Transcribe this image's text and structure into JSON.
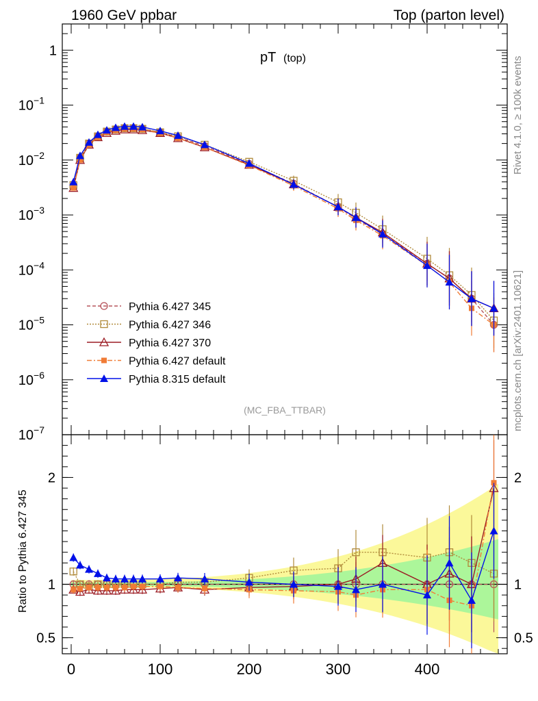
{
  "header": {
    "left": "1960 GeV ppbar",
    "right": "Top (parton level)"
  },
  "side_text": {
    "rivet": "Rivet 4.1.0, ≥ 100k events",
    "mcplots": "mcplots.cern.ch [arXiv:2401.10621]"
  },
  "chart_data": {
    "type": "line",
    "title": "pT",
    "title_sub": "(top)",
    "analysis_label": "(MC_FBA_TTBAR)",
    "xlabel": "",
    "xlim": [
      -10,
      490
    ],
    "xticks": [
      "0",
      "100",
      "200",
      "300",
      "400"
    ],
    "main": {
      "ylabel": "",
      "yscale": "log",
      "ylim": [
        1e-07,
        3
      ],
      "yticks": [
        "1",
        "10^-1",
        "10^-2",
        "10^-3",
        "10^-4",
        "10^-5",
        "10^-6",
        "10^-7"
      ]
    },
    "ratio": {
      "ylabel": "Ratio to Pythia 6.427 345",
      "ylim": [
        0.35,
        2.4
      ],
      "yticks": [
        "0.5",
        "1",
        "2"
      ],
      "reference": "Pythia 6.427 345"
    },
    "legend": [
      {
        "label": "Pythia 6.427 345",
        "color": "#b5525a",
        "marker": "open-circle",
        "dash": "5,3"
      },
      {
        "label": "Pythia 6.427 346",
        "color": "#b08a3a",
        "marker": "open-square",
        "dash": "2,2"
      },
      {
        "label": "Pythia 6.427 370",
        "color": "#9b1c24",
        "marker": "open-triangle",
        "dash": ""
      },
      {
        "label": "Pythia 6.427 default",
        "color": "#f07c36",
        "marker": "filled-square",
        "dash": "7,3,2,3"
      },
      {
        "label": "Pythia 8.315 default",
        "color": "#0010e8",
        "marker": "filled-triangle",
        "dash": ""
      }
    ],
    "series": [
      {
        "name": "Pythia 6.427 345",
        "x": [
          2.5,
          10,
          20,
          30,
          40,
          50,
          60,
          70,
          80,
          100,
          120,
          150,
          200,
          250,
          300,
          320,
          350,
          400,
          425,
          450,
          475
        ],
        "y": [
          0.0033,
          0.011,
          0.02,
          0.027,
          0.033,
          0.036,
          0.038,
          0.038,
          0.037,
          0.032,
          0.026,
          0.018,
          0.0085,
          0.0037,
          0.0014,
          0.00085,
          0.00045,
          0.00013,
          7e-05,
          3e-05,
          1e-05
        ],
        "ratio": [
          1.0,
          1.0,
          1.0,
          1.0,
          1.0,
          1.0,
          1.0,
          1.0,
          1.0,
          1.0,
          1.0,
          1.0,
          1.0,
          1.0,
          1.0,
          1.0,
          1.0,
          1.0,
          1.0,
          1.0,
          1.0
        ]
      },
      {
        "name": "Pythia 6.427 346",
        "x": [
          2.5,
          10,
          20,
          30,
          40,
          50,
          60,
          70,
          80,
          100,
          120,
          150,
          200,
          250,
          300,
          320,
          350,
          400,
          425,
          450,
          475
        ],
        "y": [
          0.0035,
          0.011,
          0.02,
          0.027,
          0.033,
          0.036,
          0.038,
          0.038,
          0.037,
          0.032,
          0.027,
          0.019,
          0.0093,
          0.0042,
          0.0017,
          0.0011,
          0.00055,
          0.00016,
          8e-05,
          3.5e-05,
          1.2e-05
        ],
        "ratio": [
          1.12,
          1.0,
          0.98,
          1.0,
          1.0,
          1.0,
          1.0,
          1.0,
          1.0,
          1.0,
          1.02,
          1.02,
          1.06,
          1.13,
          1.15,
          1.3,
          1.3,
          1.25,
          1.3,
          1.2,
          1.1
        ]
      },
      {
        "name": "Pythia 6.427 370",
        "x": [
          2.5,
          10,
          20,
          30,
          40,
          50,
          60,
          70,
          80,
          100,
          120,
          150,
          200,
          250,
          300,
          320,
          350,
          400,
          425,
          450,
          475
        ],
        "y": [
          0.0031,
          0.01,
          0.019,
          0.026,
          0.031,
          0.034,
          0.036,
          0.036,
          0.035,
          0.031,
          0.025,
          0.017,
          0.0082,
          0.0036,
          0.0014,
          0.0009,
          0.00048,
          0.00013,
          7e-05,
          3e-05,
          2e-05
        ],
        "ratio": [
          0.95,
          0.93,
          0.95,
          0.94,
          0.94,
          0.94,
          0.95,
          0.95,
          0.95,
          0.96,
          0.97,
          0.95,
          0.97,
          0.98,
          1.0,
          1.05,
          1.2,
          1.0,
          1.1,
          1.0,
          1.9
        ]
      },
      {
        "name": "Pythia 6.427 default",
        "x": [
          2.5,
          10,
          20,
          30,
          40,
          50,
          60,
          70,
          80,
          100,
          120,
          150,
          200,
          250,
          300,
          320,
          350,
          400,
          425,
          450,
          475
        ],
        "y": [
          0.0031,
          0.01,
          0.019,
          0.026,
          0.032,
          0.035,
          0.037,
          0.037,
          0.036,
          0.031,
          0.025,
          0.017,
          0.008,
          0.0034,
          0.0013,
          0.0008,
          0.00042,
          0.00012,
          6e-05,
          2e-05,
          1e-05
        ],
        "ratio": [
          0.95,
          0.96,
          0.97,
          0.97,
          0.97,
          0.97,
          0.97,
          0.98,
          0.98,
          0.98,
          0.97,
          0.96,
          0.95,
          0.94,
          0.93,
          0.9,
          0.95,
          0.95,
          0.85,
          0.8,
          1.95
        ]
      },
      {
        "name": "Pythia 8.315 default",
        "x": [
          2.5,
          10,
          20,
          30,
          40,
          50,
          60,
          70,
          80,
          100,
          120,
          150,
          200,
          250,
          300,
          320,
          350,
          400,
          425,
          450,
          475
        ],
        "y": [
          0.004,
          0.012,
          0.021,
          0.029,
          0.035,
          0.039,
          0.041,
          0.041,
          0.04,
          0.034,
          0.028,
          0.019,
          0.0087,
          0.0036,
          0.0014,
          0.0009,
          0.00045,
          0.00012,
          6e-05,
          3e-05,
          2e-05
        ],
        "ratio": [
          1.25,
          1.18,
          1.14,
          1.1,
          1.06,
          1.05,
          1.05,
          1.05,
          1.05,
          1.05,
          1.06,
          1.05,
          1.02,
          1.0,
          0.98,
          0.95,
          1.0,
          0.9,
          1.2,
          0.85,
          1.5
        ]
      }
    ]
  }
}
